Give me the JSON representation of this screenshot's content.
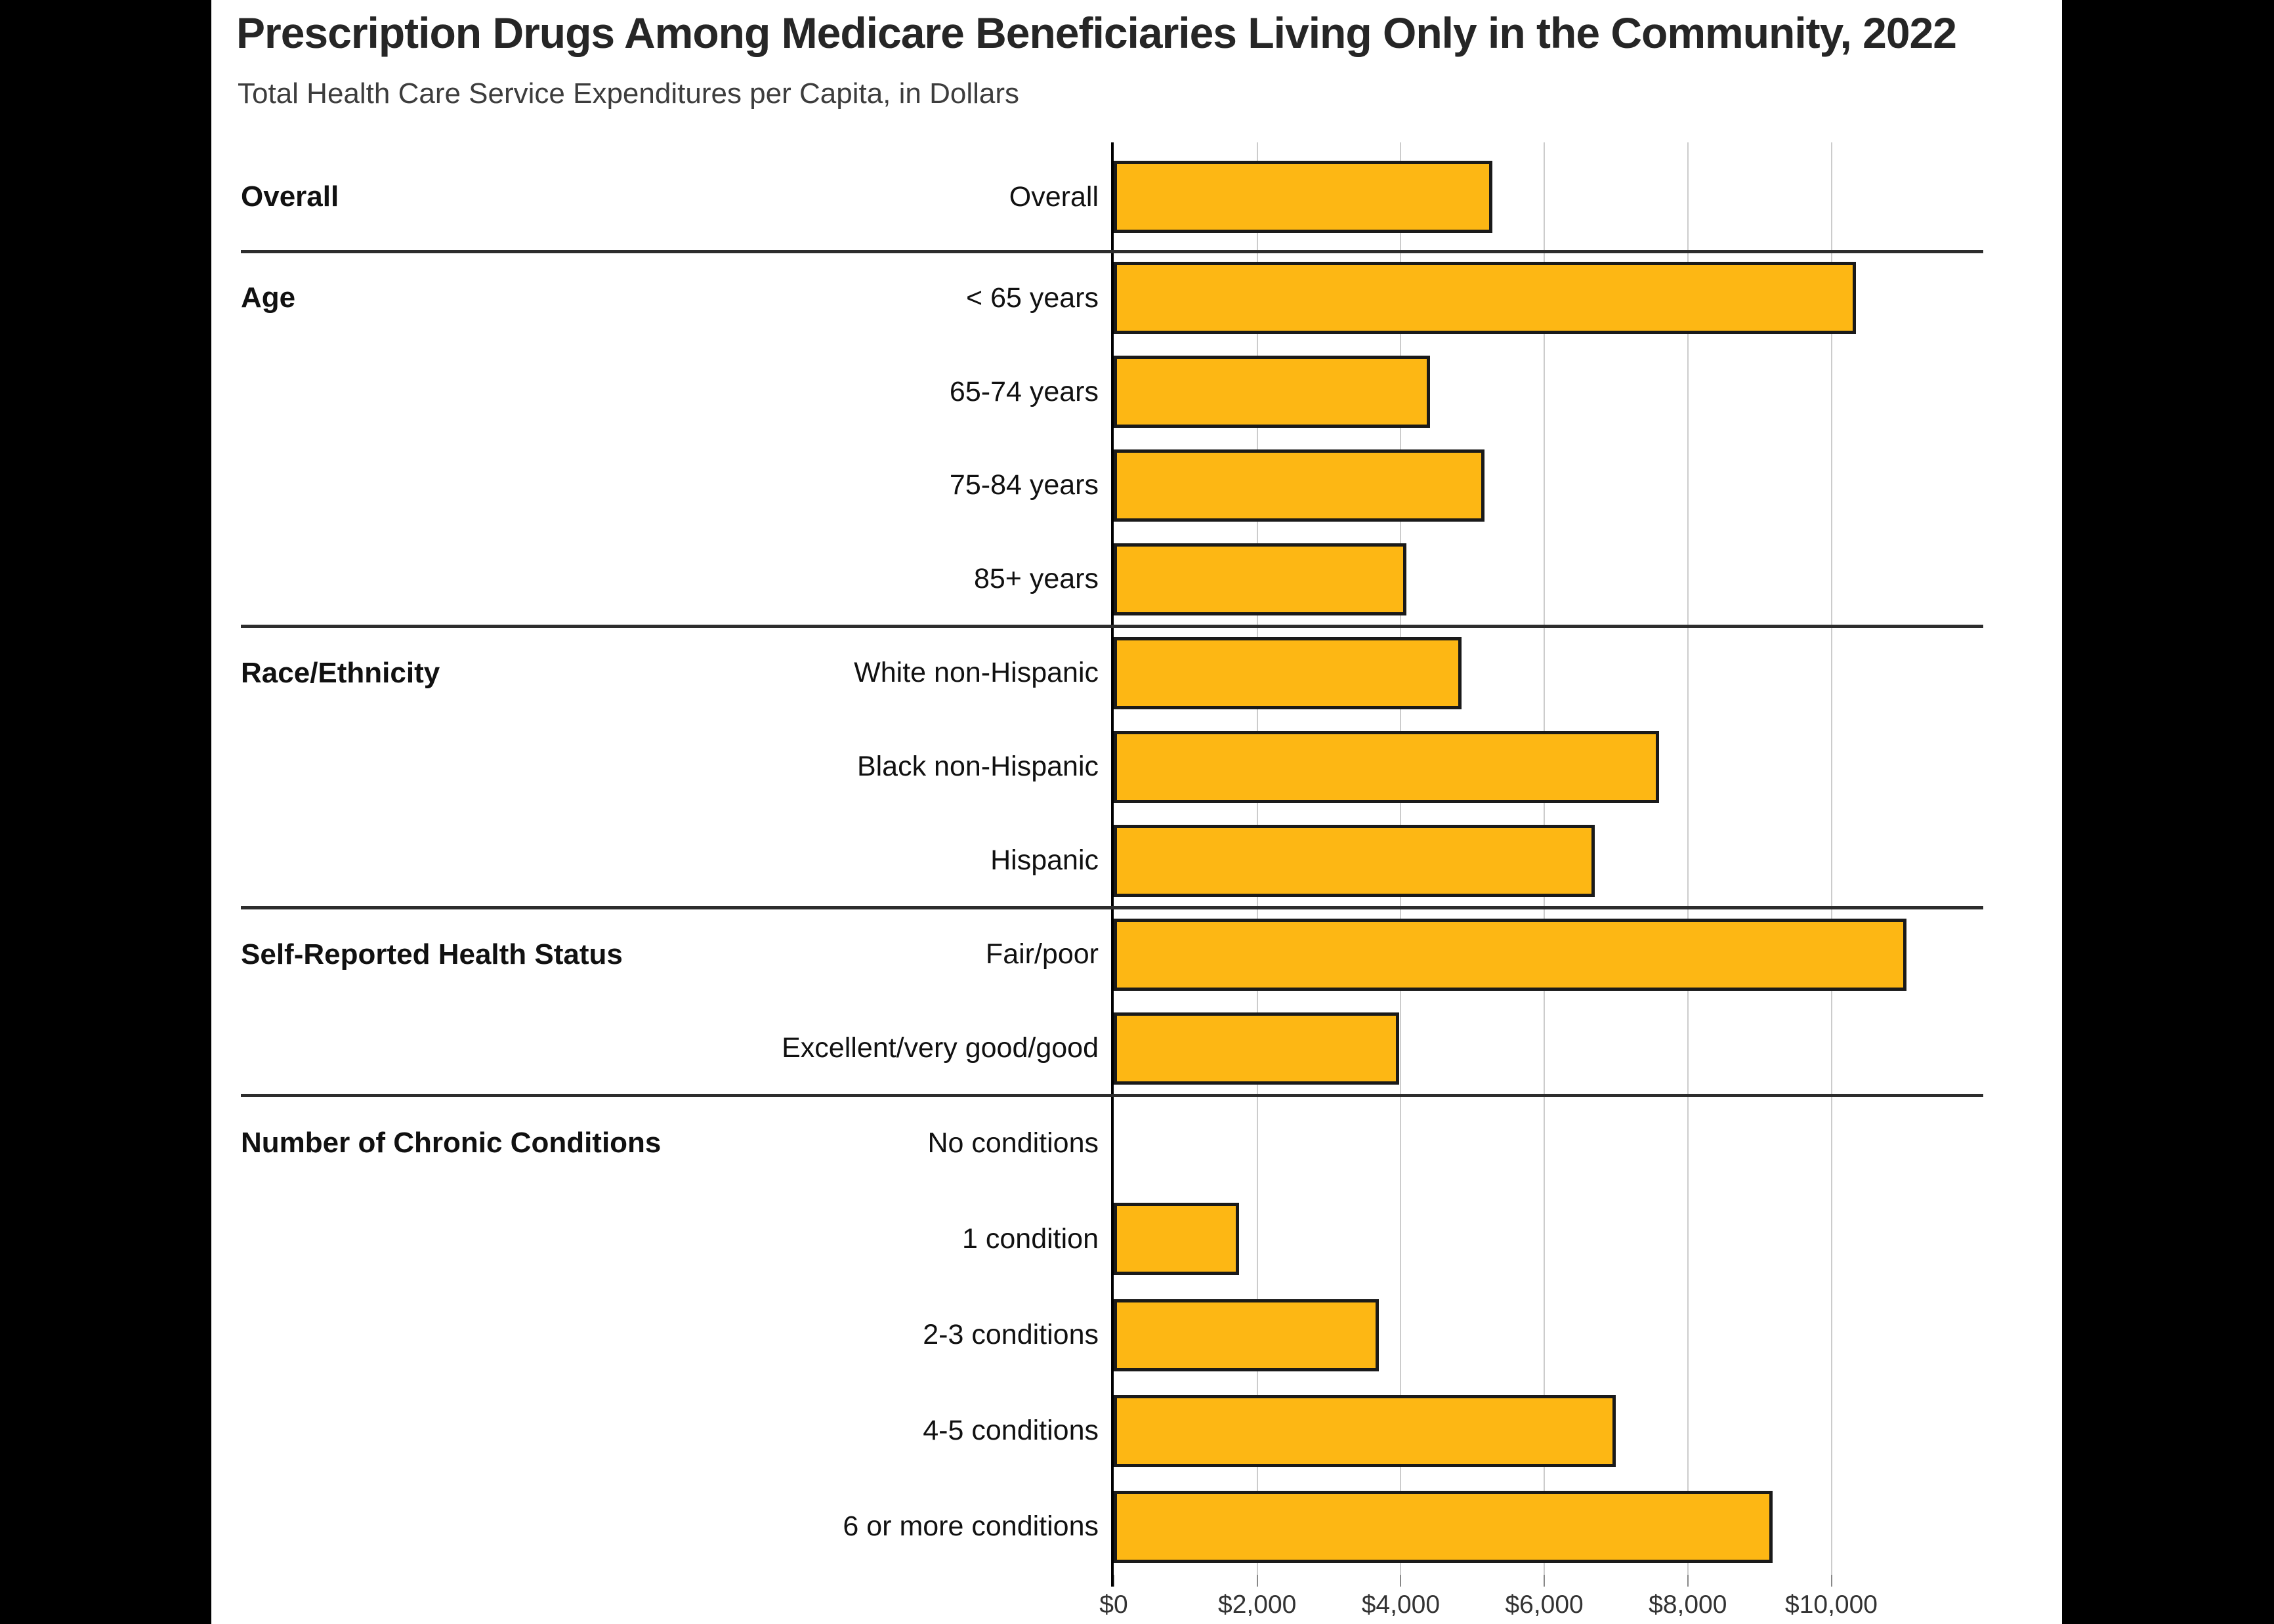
{
  "page": {
    "background": "#000000",
    "panel_background": "#ffffff"
  },
  "colors": {
    "bar_fill": "#FDB714",
    "bar_border": "#1A1A1A",
    "gridline": "#CCCCCC",
    "separator": "#2D2D2D",
    "axis_line": "#000000",
    "title_text": "#262626",
    "subtitle_text": "#3D3D3D"
  },
  "axis": {
    "tick_labels": [
      "$0",
      "$2,000",
      "$4,000",
      "$6,000",
      "$8,000",
      "$10,000"
    ],
    "tick_values": [
      0,
      2000,
      4000,
      6000,
      8000,
      10000
    ]
  },
  "chart_data": {
    "type": "bar",
    "orientation": "horizontal",
    "title": "Prescription Drugs Among Medicare Beneficiaries Living Only in the Community, 2022",
    "subtitle": "Total Health Care Service Expenditures per Capita, in Dollars",
    "xlabel": "",
    "ylabel": "",
    "x_ticks": [
      0,
      2000,
      4000,
      6000,
      8000,
      10000
    ],
    "xlim": [
      0,
      12100
    ],
    "grid": "vertical",
    "legend": "none",
    "unit": "dollars per capita",
    "groups": [
      {
        "group": "Overall",
        "rows": [
          {
            "label": "Overall",
            "value": 5280
          }
        ]
      },
      {
        "group": "Age",
        "rows": [
          {
            "label": "< 65 years",
            "value": 10340
          },
          {
            "label": "65-74 years",
            "value": 4410
          },
          {
            "label": "75-84 years",
            "value": 5170
          },
          {
            "label": "85+ years",
            "value": 4080
          }
        ]
      },
      {
        "group": "Race/Ethnicity",
        "rows": [
          {
            "label": "White non-Hispanic",
            "value": 4850
          },
          {
            "label": "Black non-Hispanic",
            "value": 7600
          },
          {
            "label": "Hispanic",
            "value": 6700
          }
        ]
      },
      {
        "group": "Self-Reported Health Status",
        "rows": [
          {
            "label": "Fair/poor",
            "value": 11050
          },
          {
            "label": "Excellent/very good/good",
            "value": 3980
          }
        ]
      },
      {
        "group": "Number of Chronic Conditions",
        "rows": [
          {
            "label": "No conditions",
            "value": 0
          },
          {
            "label": "1 condition",
            "value": 1750
          },
          {
            "label": "2-3 conditions",
            "value": 3690
          },
          {
            "label": "4-5 conditions",
            "value": 7000
          },
          {
            "label": "6 or more conditions",
            "value": 9180
          }
        ]
      }
    ]
  }
}
